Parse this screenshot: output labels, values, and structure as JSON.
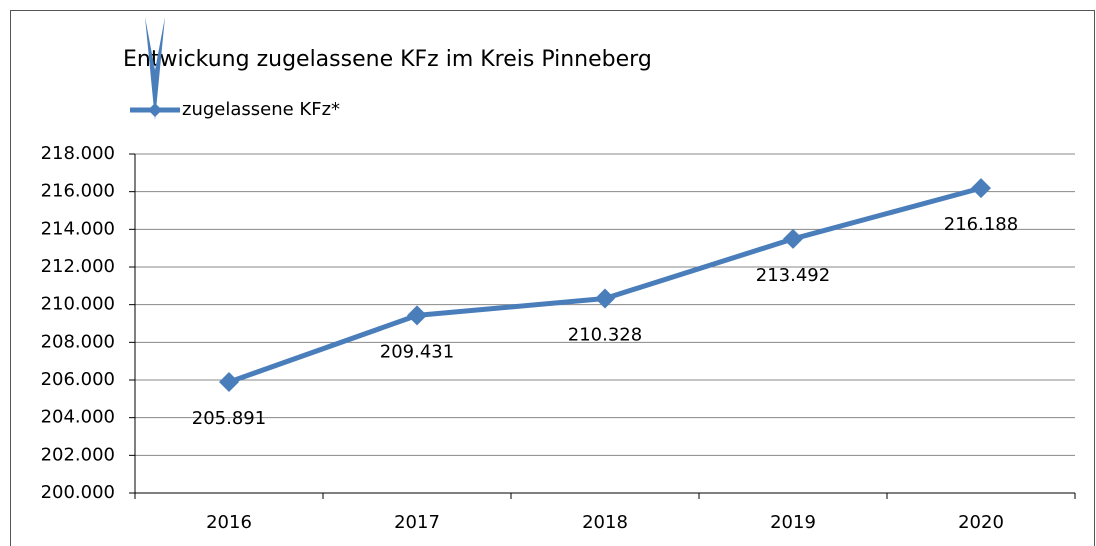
{
  "chart_data": {
    "type": "line",
    "title": "Entwickung zugelassene KFz im Kreis Pinneberg",
    "categories": [
      "2016",
      "2017",
      "2018",
      "2019",
      "2020"
    ],
    "series": [
      {
        "name": "zugelassene KFz*",
        "color": "#4a7ebb",
        "values": [
          205891,
          209431,
          210328,
          213492,
          216188
        ],
        "value_labels": [
          "205.891",
          "209.431",
          "210.328",
          "213.492",
          "216.188"
        ]
      }
    ],
    "ylim": [
      200000,
      218000
    ],
    "yticks": [
      {
        "value": 200000,
        "label": "200.000"
      },
      {
        "value": 202000,
        "label": "202.000"
      },
      {
        "value": 204000,
        "label": "204.000"
      },
      {
        "value": 206000,
        "label": "206.000"
      },
      {
        "value": 208000,
        "label": "208.000"
      },
      {
        "value": 210000,
        "label": "210.000"
      },
      {
        "value": 212000,
        "label": "212.000"
      },
      {
        "value": 214000,
        "label": "214.000"
      },
      {
        "value": 216000,
        "label": "216.000"
      },
      {
        "value": 218000,
        "label": "218.000"
      }
    ],
    "grid": true,
    "legend": "top-left"
  }
}
